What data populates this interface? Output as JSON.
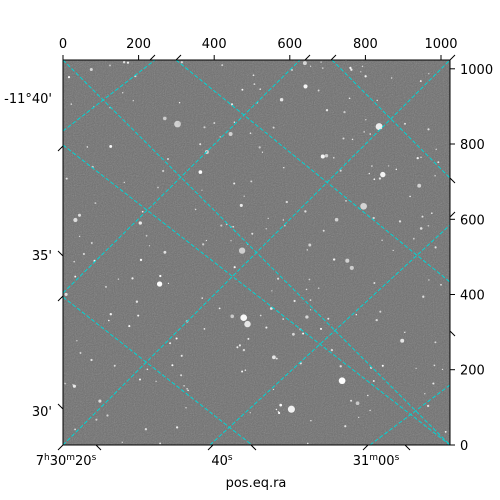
{
  "figure": {
    "x_axis_label": "pos.eq.ra",
    "pixel_axis": {
      "top_ticks": [
        "0",
        "200",
        "400",
        "600",
        "800",
        "1000"
      ],
      "right_ticks": [
        "0",
        "200",
        "400",
        "600",
        "800",
        "1000"
      ],
      "range": [
        0,
        1024
      ]
    },
    "ra_ticks": {
      "t1": {
        "base": "7",
        "h": "h",
        "v1": "30",
        "m": "m",
        "v2": "20",
        "s": "s"
      },
      "t2": {
        "v": "40",
        "s": "s"
      },
      "t3": {
        "v1": "31",
        "m": "m",
        "v2": "00",
        "s": "s"
      }
    },
    "dec_ticks": [
      "-11°40'",
      "35'",
      "30'"
    ],
    "image": {
      "description_kind": "grayscale star field",
      "grid_color": "#00d5d5",
      "background_color": "#6e6e6e"
    }
  }
}
